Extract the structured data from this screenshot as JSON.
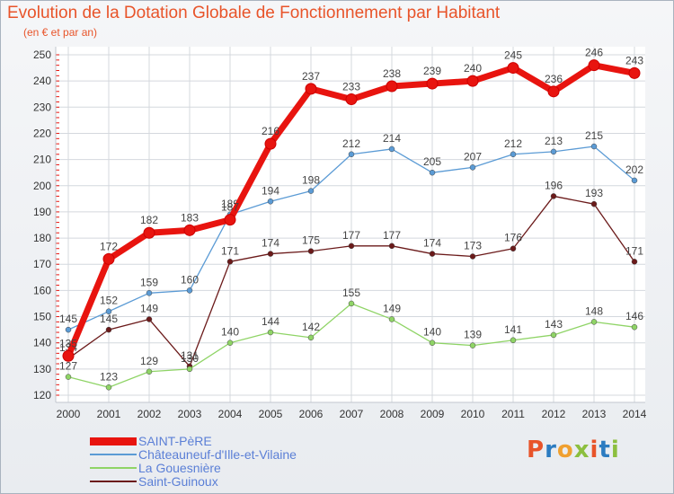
{
  "header": {
    "title": "Evolution de la Dotation Globale de Fonctionnement par Habitant",
    "subtitle": "(en € et par an)"
  },
  "logo": {
    "text": "Proxiti",
    "colors": [
      "#e8542a",
      "#2c7cc1",
      "#f0a030",
      "#8cbf3f",
      "#e8542a",
      "#2c7cc1",
      "#8cbf3f"
    ]
  },
  "chart_data": {
    "type": "line",
    "x": [
      2000,
      2001,
      2002,
      2003,
      2004,
      2005,
      2006,
      2007,
      2008,
      2009,
      2010,
      2011,
      2012,
      2013,
      2014
    ],
    "ylim": [
      120,
      250
    ],
    "yticks": [
      120,
      130,
      140,
      150,
      160,
      170,
      180,
      190,
      200,
      210,
      220,
      230,
      240,
      250
    ],
    "grid": true,
    "legend_position": "bottom-left",
    "series": [
      {
        "name": "SAINT-PèRE",
        "color": "#e8140f",
        "values": [
          135,
          172,
          182,
          183,
          187,
          216,
          237,
          233,
          238,
          239,
          240,
          245,
          236,
          246,
          243
        ]
      },
      {
        "name": "Châteauneuf-d'Ille-et-Vilaine",
        "color": "#5b9bd5",
        "values": [
          145,
          152,
          159,
          160,
          189,
          194,
          198,
          212,
          214,
          205,
          207,
          212,
          213,
          215,
          202
        ]
      },
      {
        "name": "La Gouesnière",
        "color": "#8fd466",
        "values": [
          127,
          123,
          129,
          130,
          140,
          144,
          142,
          155,
          149,
          140,
          139,
          141,
          143,
          148,
          146
        ]
      },
      {
        "name": "Saint-Guinoux",
        "color": "#6b1a1a",
        "values": [
          134,
          145,
          149,
          131,
          171,
          174,
          175,
          177,
          177,
          174,
          173,
          176,
          196,
          193,
          171
        ]
      }
    ]
  }
}
